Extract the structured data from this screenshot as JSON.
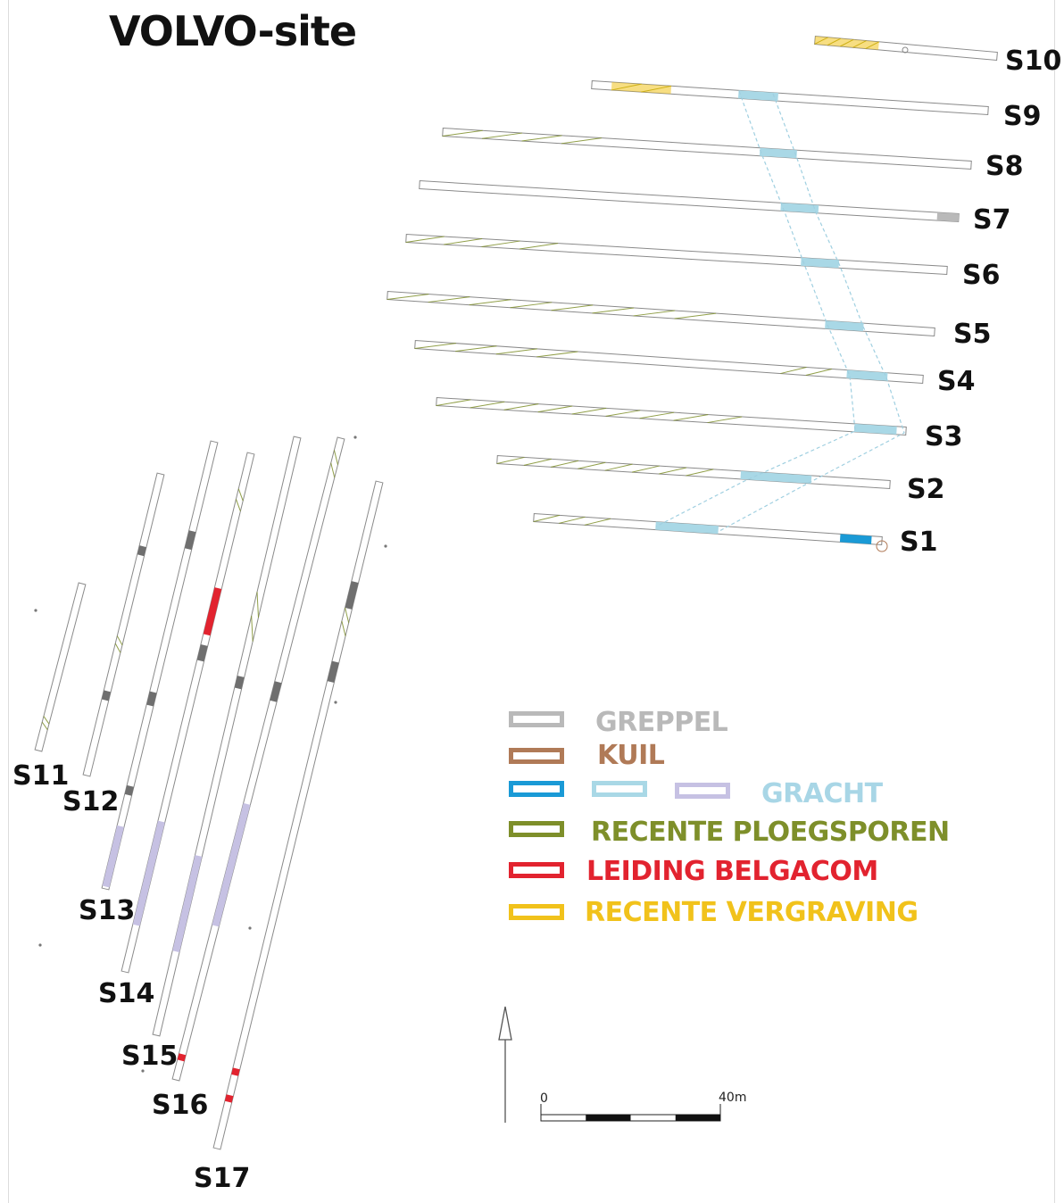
{
  "title": "VOLVO-site",
  "trenches_east": [
    {
      "label": "S1"
    },
    {
      "label": "S2"
    },
    {
      "label": "S3"
    },
    {
      "label": "S4"
    },
    {
      "label": "S5"
    },
    {
      "label": "S6"
    },
    {
      "label": "S7"
    },
    {
      "label": "S8"
    },
    {
      "label": "S9"
    },
    {
      "label": "S10"
    }
  ],
  "trenches_west": [
    {
      "label": "S11"
    },
    {
      "label": "S12"
    },
    {
      "label": "S13"
    },
    {
      "label": "S14"
    },
    {
      "label": "S15"
    },
    {
      "label": "S16"
    },
    {
      "label": "S17"
    }
  ],
  "legend": {
    "greppel": {
      "label": "GREPPEL",
      "color": "#b9b9b9"
    },
    "kuil": {
      "label": "KUIL",
      "color": "#b07a57"
    },
    "gracht": {
      "label": "GRACHT",
      "colors": [
        "#1a9ad6",
        "#a9d8e6",
        "#c6c1e3"
      ],
      "text_color": "#a8d6e6"
    },
    "ploegsporen": {
      "label": "RECENTE PLOEGSPOREN",
      "color": "#7e8f2a"
    },
    "belgacom": {
      "label": "LEIDING BELGACOM",
      "color": "#e2232f"
    },
    "vergraving": {
      "label": "RECENTE VERGRAVING",
      "color": "#f1c21b"
    }
  },
  "scale_bar": {
    "start_label": "0",
    "end_label": "40m"
  },
  "north_arrow": {
    "direction": "north"
  }
}
